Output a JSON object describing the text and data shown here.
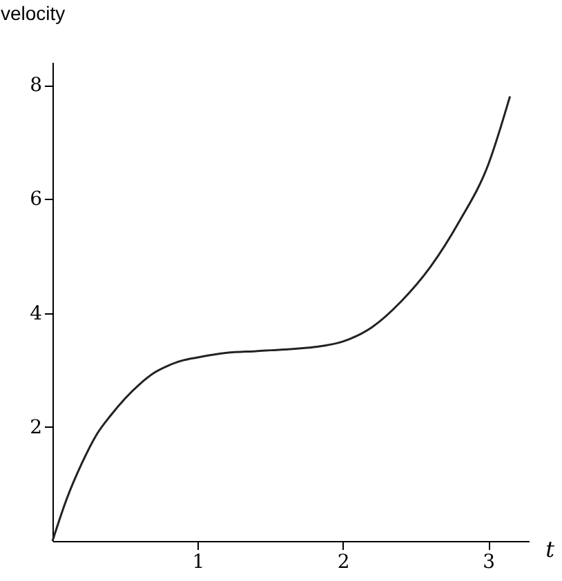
{
  "chart_data": {
    "type": "line",
    "xlabel": "t",
    "ylabel": "velocity",
    "x": [
      0,
      0.1,
      0.2,
      0.3,
      0.4,
      0.5,
      0.6,
      0.7,
      0.8,
      0.9,
      1,
      1.2,
      1.4,
      1.6,
      1.8,
      2,
      2.2,
      2.4,
      2.6,
      2.8,
      3,
      3.15
    ],
    "series": [
      {
        "color": "#222222",
        "values": [
          0,
          0.75,
          1.35,
          1.85,
          2.2,
          2.5,
          2.75,
          2.95,
          3.08,
          3.17,
          3.22,
          3.3,
          3.33,
          3.36,
          3.4,
          3.5,
          3.75,
          4.2,
          4.8,
          5.6,
          6.6,
          7.8
        ]
      }
    ],
    "xlim": [
      0,
      3.28
    ],
    "ylim": [
      0,
      8.4
    ],
    "xticks": [
      1,
      2,
      3
    ],
    "yticks": [
      2,
      4,
      6,
      8
    ],
    "grid": false,
    "marker": "none",
    "line_style": "solid"
  }
}
